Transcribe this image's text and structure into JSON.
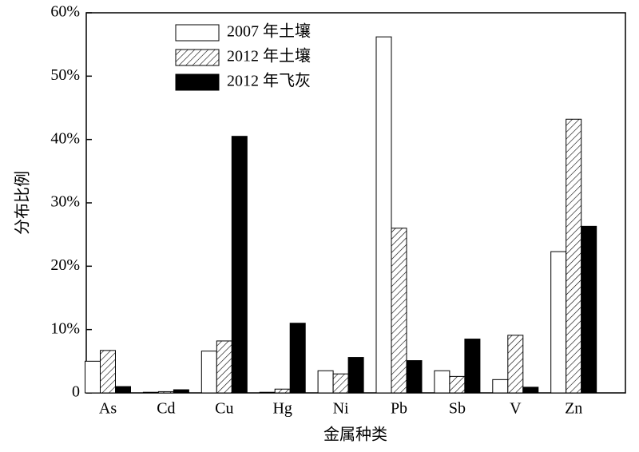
{
  "chart_data": {
    "type": "bar",
    "x_label": "金属种类",
    "y_label": "分布比例",
    "categories": [
      "As",
      "Cd",
      "Cu",
      "Hg",
      "Ni",
      "Pb",
      "Sb",
      "V",
      "Zn"
    ],
    "series": [
      {
        "name": "2007 年土壤",
        "color": "#ffffff",
        "values": [
          5.0,
          0.1,
          6.6,
          0.1,
          3.5,
          56.2,
          3.5,
          2.1,
          22.3
        ]
      },
      {
        "name": "2012 年土壤",
        "color": "#ffffff",
        "hatch": true,
        "values": [
          6.7,
          0.2,
          8.2,
          0.6,
          3.0,
          26.0,
          2.6,
          9.1,
          43.2
        ]
      },
      {
        "name": "2012 年飞灰",
        "color": "#000000",
        "values": [
          1.0,
          0.5,
          40.5,
          11.0,
          5.6,
          5.1,
          8.5,
          0.9,
          26.3
        ]
      }
    ],
    "ylim": [
      0,
      60
    ],
    "yticks": [
      0,
      {
        "value": 10,
        "label": "10%"
      },
      {
        "value": 20,
        "label": "20%"
      },
      {
        "value": 30,
        "label": "30%"
      },
      {
        "value": 40,
        "label": "40%"
      },
      {
        "value": 50,
        "label": "50%"
      },
      {
        "value": 60,
        "label": "60%"
      }
    ],
    "legend": "top-left"
  }
}
